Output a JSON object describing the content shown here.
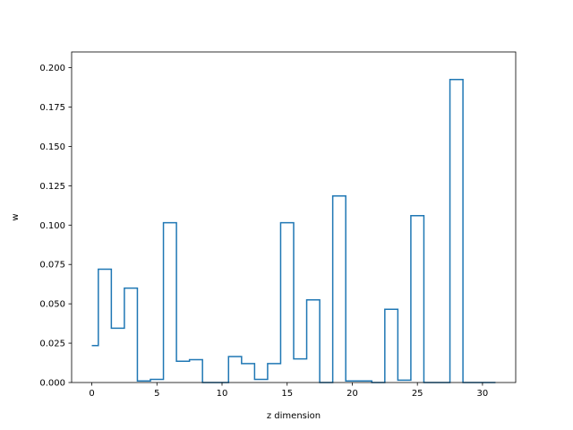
{
  "chart_data": {
    "type": "step",
    "title": "",
    "xlabel": "z dimension",
    "ylabel": "w",
    "xlim": [
      -1.55,
      32.55
    ],
    "ylim": [
      0,
      0.21
    ],
    "x_ticks": [
      0,
      5,
      10,
      15,
      20,
      25,
      30
    ],
    "y_ticks": [
      0.0,
      0.025,
      0.05,
      0.075,
      0.1,
      0.125,
      0.15,
      0.175,
      0.2
    ],
    "x_tick_labels": [
      "0",
      "5",
      "10",
      "15",
      "20",
      "25",
      "30"
    ],
    "y_tick_labels": [
      "0.000",
      "0.025",
      "0.050",
      "0.075",
      "0.100",
      "0.125",
      "0.150",
      "0.175",
      "0.200"
    ],
    "line_color": "#1f77b4",
    "grid": false,
    "series": [
      {
        "x": [
          0,
          1,
          2,
          3,
          4,
          5,
          6,
          7,
          8,
          9,
          10,
          11,
          12,
          13,
          14,
          15,
          16,
          17,
          18,
          19,
          20,
          21,
          22,
          23,
          24,
          25,
          26,
          27,
          28,
          29,
          30,
          31
        ],
        "values": [
          0.0235,
          0.072,
          0.0345,
          0.06,
          0.001,
          0.002,
          0.1015,
          0.0135,
          0.0145,
          0.0,
          0.0,
          0.0165,
          0.012,
          0.002,
          0.012,
          0.1015,
          0.015,
          0.0525,
          0.0,
          0.1185,
          0.001,
          0.001,
          0.0,
          0.0465,
          0.0015,
          0.106,
          0.0,
          0.0,
          0.1925,
          0.0,
          0.0,
          0.0
        ]
      }
    ]
  }
}
